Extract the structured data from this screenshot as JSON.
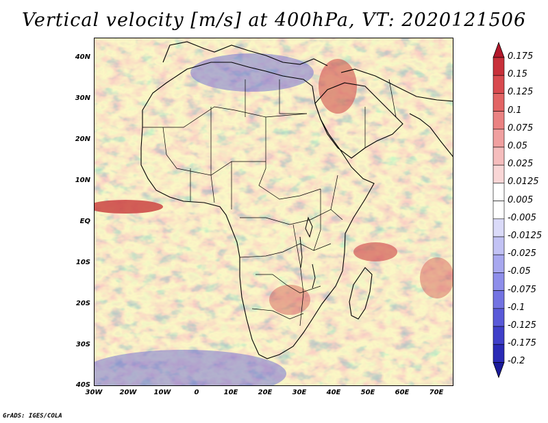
{
  "title": "Vertical velocity [m/s] at 400hPa, VT: 2020121506",
  "credit": "GrADS: IGES/COLA",
  "axes": {
    "lat_labels": [
      "40N",
      "30N",
      "20N",
      "10N",
      "EQ",
      "10S",
      "20S",
      "30S",
      "40S"
    ],
    "lon_labels": [
      "30W",
      "20W",
      "10W",
      "0",
      "10E",
      "20E",
      "30E",
      "40E",
      "50E",
      "60E",
      "70E"
    ]
  },
  "colorbar": {
    "labels": [
      "0.175",
      "0.15",
      "0.125",
      "0.1",
      "0.075",
      "0.05",
      "0.025",
      "0.0125",
      "0.005",
      "-0.005",
      "-0.0125",
      "-0.025",
      "-0.05",
      "-0.075",
      "-0.1",
      "-0.125",
      "-0.175",
      "-0.2"
    ],
    "colors": [
      "#b2182b",
      "#c8303a",
      "#d84a4f",
      "#e26565",
      "#ea8282",
      "#f0a0a0",
      "#f5bdbd",
      "#f9d6d6",
      "#ffffff",
      "#ffffff",
      "#dadaf8",
      "#c2c2f4",
      "#a8a8ef",
      "#8e8eea",
      "#7373e2",
      "#5959d8",
      "#3f3fc9",
      "#2a2ab5",
      "#1a1a9a"
    ]
  },
  "map": {
    "domain": "Africa and surrounding oceans",
    "lat_range": [
      -40,
      45
    ],
    "lon_range": [
      -30,
      75
    ],
    "field_colors": {
      "rising": "#e07070",
      "sinking": "#7878ea",
      "neutral": "#f4f4fc"
    }
  }
}
